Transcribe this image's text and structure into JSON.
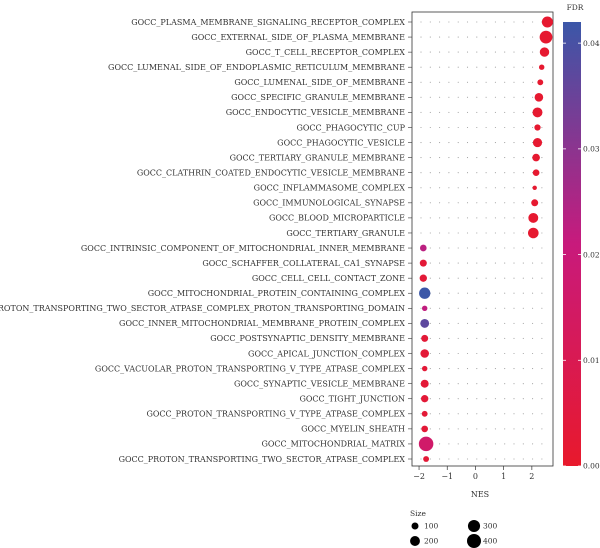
{
  "chart_data": {
    "type": "scatter",
    "xlabel": "NES",
    "x_ticks": [
      -2,
      -1,
      0,
      1,
      2
    ],
    "xlim": [
      -2.25,
      2.75
    ],
    "terms": [
      "GOCC_PLASMA_MEMBRANE_SIGNALING_RECEPTOR_COMPLEX",
      "GOCC_EXTERNAL_SIDE_OF_PLASMA_MEMBRANE",
      "GOCC_T_CELL_RECEPTOR_COMPLEX",
      "GOCC_LUMENAL_SIDE_OF_ENDOPLASMIC_RETICULUM_MEMBRANE",
      "GOCC_LUMENAL_SIDE_OF_MEMBRANE",
      "GOCC_SPECIFIC_GRANULE_MEMBRANE",
      "GOCC_ENDOCYTIC_VESICLE_MEMBRANE",
      "GOCC_PHAGOCYTIC_CUP",
      "GOCC_PHAGOCYTIC_VESICLE",
      "GOCC_TERTIARY_GRANULE_MEMBRANE",
      "GOCC_CLATHRIN_COATED_ENDOCYTIC_VESICLE_MEMBRANE",
      "GOCC_INFLAMMASOME_COMPLEX",
      "GOCC_IMMUNOLOGICAL_SYNAPSE",
      "GOCC_BLOOD_MICROPARTICLE",
      "GOCC_TERTIARY_GRANULE",
      "GOCC_INTRINSIC_COMPONENT_OF_MITOCHONDRIAL_INNER_MEMBRANE",
      "GOCC_SCHAFFER_COLLATERAL_CA1_SYNAPSE",
      "GOCC_CELL_CELL_CONTACT_ZONE",
      "GOCC_MITOCHONDRIAL_PROTEIN_CONTAINING_COMPLEX",
      "GOCC_PROTON_TRANSPORTING_TWO_SECTOR_ATPASE_COMPLEX_PROTON_TRANSPORTING_DOMAIN",
      "GOCC_INNER_MITOCHONDRIAL_MEMBRANE_PROTEIN_COMPLEX",
      "GOCC_POSTSYNAPTIC_DENSITY_MEMBRANE",
      "GOCC_APICAL_JUNCTION_COMPLEX",
      "GOCC_VACUOLAR_PROTON_TRANSPORTING_V_TYPE_ATPASE_COMPLEX",
      "GOCC_SYNAPTIC_VESICLE_MEMBRANE",
      "GOCC_TIGHT_JUNCTION",
      "GOCC_PROTON_TRANSPORTING_V_TYPE_ATPASE_COMPLEX",
      "GOCC_MYELIN_SHEATH",
      "GOCC_MITOCHONDRIAL_MATRIX",
      "GOCC_PROTON_TRANSPORTING_TWO_SECTOR_ATPASE_COMPLEX"
    ],
    "points": [
      {
        "nes": 2.55,
        "size": 250,
        "fdr": 0.001
      },
      {
        "nes": 2.5,
        "size": 330,
        "fdr": 0.001
      },
      {
        "nes": 2.45,
        "size": 180,
        "fdr": 0.001
      },
      {
        "nes": 2.35,
        "size": 60,
        "fdr": 0.001
      },
      {
        "nes": 2.3,
        "size": 70,
        "fdr": 0.001
      },
      {
        "nes": 2.25,
        "size": 150,
        "fdr": 0.001
      },
      {
        "nes": 2.2,
        "size": 200,
        "fdr": 0.001
      },
      {
        "nes": 2.2,
        "size": 80,
        "fdr": 0.001
      },
      {
        "nes": 2.2,
        "size": 170,
        "fdr": 0.001
      },
      {
        "nes": 2.15,
        "size": 120,
        "fdr": 0.001
      },
      {
        "nes": 2.15,
        "size": 90,
        "fdr": 0.001
      },
      {
        "nes": 2.1,
        "size": 40,
        "fdr": 0.001
      },
      {
        "nes": 2.1,
        "size": 100,
        "fdr": 0.001
      },
      {
        "nes": 2.05,
        "size": 200,
        "fdr": 0.001
      },
      {
        "nes": 2.05,
        "size": 230,
        "fdr": 0.001
      },
      {
        "nes": -1.85,
        "size": 90,
        "fdr": 0.023
      },
      {
        "nes": -1.85,
        "size": 100,
        "fdr": 0.003
      },
      {
        "nes": -1.85,
        "size": 110,
        "fdr": 0.003
      },
      {
        "nes": -1.8,
        "size": 260,
        "fdr": 0.042
      },
      {
        "nes": -1.8,
        "size": 60,
        "fdr": 0.022
      },
      {
        "nes": -1.8,
        "size": 160,
        "fdr": 0.037
      },
      {
        "nes": -1.8,
        "size": 100,
        "fdr": 0.003
      },
      {
        "nes": -1.8,
        "size": 150,
        "fdr": 0.003
      },
      {
        "nes": -1.8,
        "size": 60,
        "fdr": 0.003
      },
      {
        "nes": -1.8,
        "size": 130,
        "fdr": 0.003
      },
      {
        "nes": -1.8,
        "size": 110,
        "fdr": 0.003
      },
      {
        "nes": -1.8,
        "size": 70,
        "fdr": 0.003
      },
      {
        "nes": -1.8,
        "size": 90,
        "fdr": 0.003
      },
      {
        "nes": -1.75,
        "size": 430,
        "fdr": 0.016
      },
      {
        "nes": -1.75,
        "size": 70,
        "fdr": 0.003
      }
    ],
    "color_scale": {
      "title": "FDR",
      "ticks": [
        "0.04",
        "0.03",
        "0.02",
        "0.01",
        "0.00"
      ],
      "tick_values": [
        0.04,
        0.03,
        0.02,
        0.01,
        0.0
      ],
      "min": 0,
      "max": 0.042,
      "low_color": "#e8192c",
      "mid_color": "#c81a7c",
      "high_color": "#3b57a8"
    },
    "size_legend": {
      "title": "Size",
      "entries": [
        "100",
        "200",
        "300",
        "400"
      ],
      "values": [
        100,
        200,
        300,
        400
      ]
    },
    "grid": "dotted"
  }
}
